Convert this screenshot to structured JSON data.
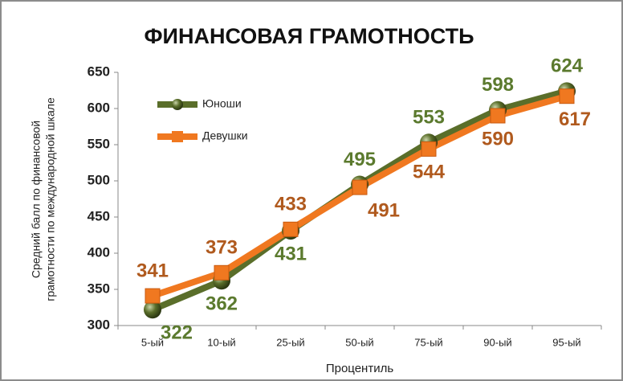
{
  "chart_data": {
    "type": "line",
    "title": "ФИНАНСОВАЯ ГРАМОТНОСТЬ",
    "x_label": "Процентиль",
    "y_label": [
      "Средний балл по финансовой",
      "грамотности по международной шкале"
    ],
    "categories": [
      "5-ый",
      "10-ый",
      "25-ый",
      "50-ый",
      "75-ый",
      "90-ый",
      "95-ый"
    ],
    "series": [
      {
        "name": "Юноши",
        "color": "#5a6e2a",
        "label_color": "#5b7a2e",
        "values": [
          322,
          362,
          431,
          495,
          553,
          598,
          624
        ]
      },
      {
        "name": "Девушки",
        "color": "#f07820",
        "label_color": "#b05a1e",
        "values": [
          341,
          373,
          433,
          491,
          544,
          590,
          617
        ]
      }
    ],
    "ylim": [
      300,
      650
    ],
    "yticks": [
      300,
      350,
      400,
      450,
      500,
      550,
      600,
      650
    ]
  }
}
